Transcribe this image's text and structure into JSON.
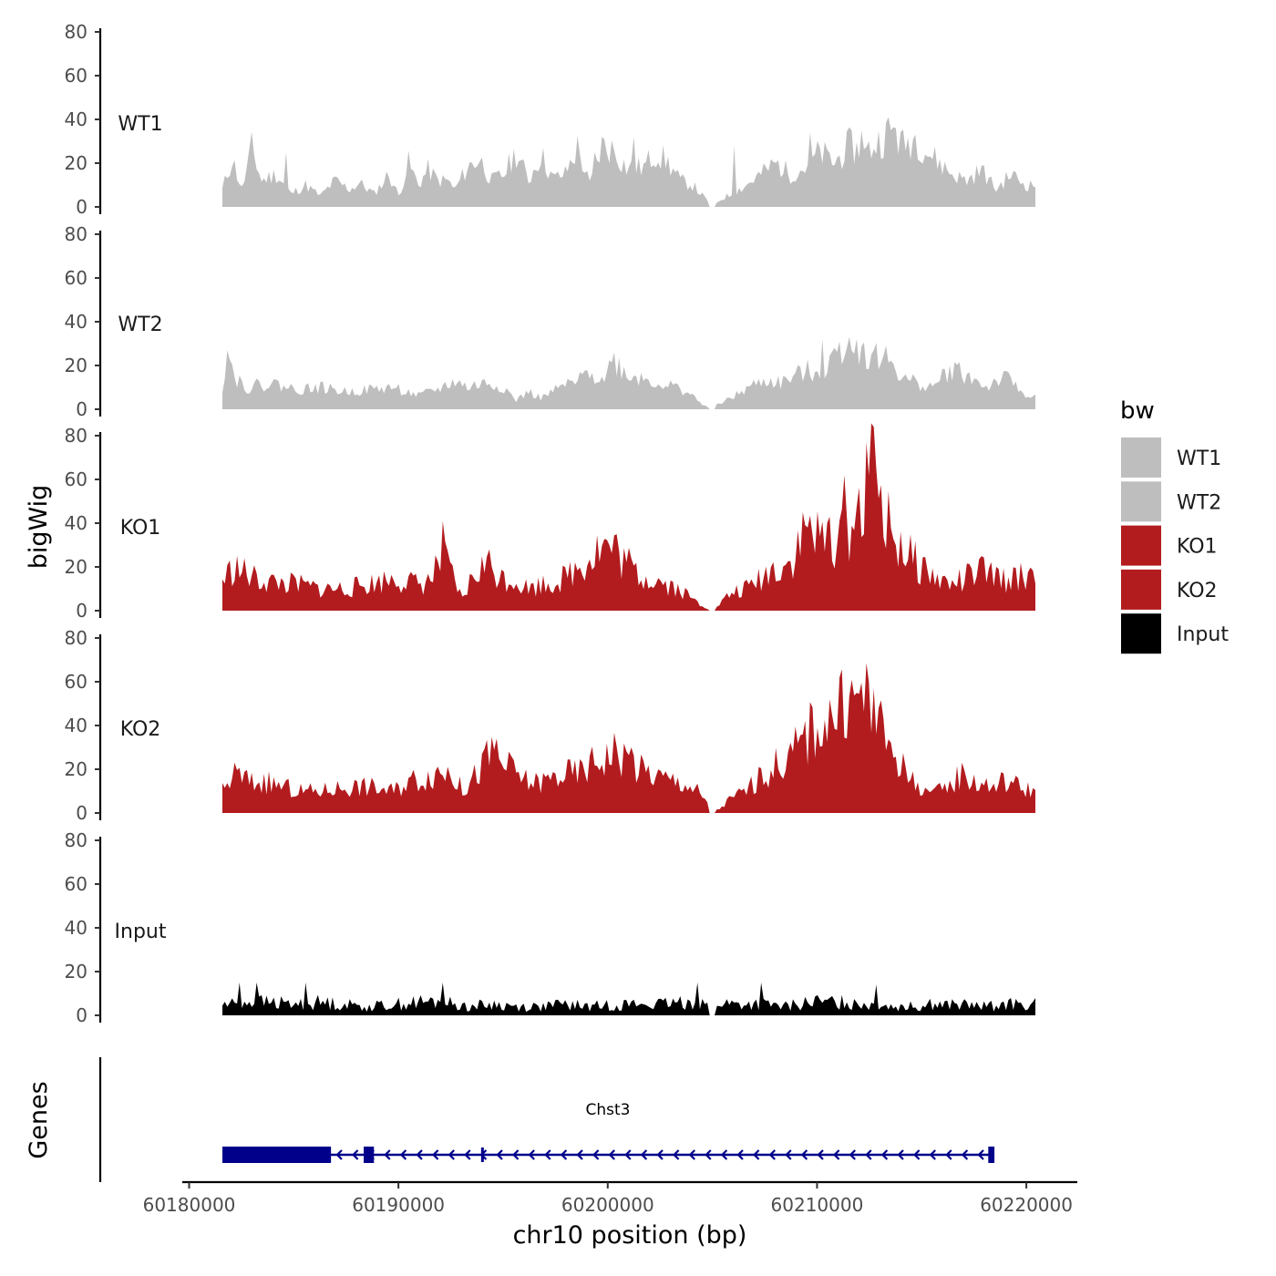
{
  "chart_data": {
    "type": "area",
    "ylabel": "bigWig",
    "xlabel": "chr10 position (bp)",
    "x_range": [
      60181500,
      60221200
    ],
    "x_axis_limits": [
      60180000,
      60222500
    ],
    "x_ticks": [
      60180000,
      60190000,
      60200000,
      60210000,
      60220000
    ],
    "x_tick_labels": [
      "60180000",
      "60190000",
      "60200000",
      "60210000",
      "60220000"
    ],
    "ylim": [
      0,
      80
    ],
    "y_ticks": [
      0,
      20,
      40,
      60,
      80
    ],
    "y_tick_labels": [
      "0",
      "20",
      "40",
      "60",
      "80"
    ],
    "legend": {
      "title": "bw",
      "entries": [
        {
          "label": "WT1",
          "color": "#bebebe"
        },
        {
          "label": "WT2",
          "color": "#bebebe"
        },
        {
          "label": "KO1",
          "color": "#b21c1f"
        },
        {
          "label": "KO2",
          "color": "#b21c1f"
        },
        {
          "label": "Input",
          "color": "#000000"
        }
      ]
    },
    "series": [
      {
        "name": "WT1",
        "color": "#bebebe",
        "profile": [
          [
            0,
            8
          ],
          [
            4,
            22
          ],
          [
            8,
            8
          ],
          [
            12,
            27
          ],
          [
            16,
            12
          ],
          [
            22,
            15
          ],
          [
            28,
            6
          ],
          [
            34,
            10
          ],
          [
            40,
            5
          ],
          [
            46,
            12
          ],
          [
            52,
            8
          ],
          [
            56,
            11
          ],
          [
            62,
            6
          ],
          [
            68,
            15
          ],
          [
            72,
            5
          ],
          [
            76,
            20
          ],
          [
            80,
            10
          ],
          [
            84,
            17
          ],
          [
            88,
            12
          ],
          [
            92,
            12
          ],
          [
            95,
            8
          ],
          [
            100,
            18
          ],
          [
            105,
            22
          ],
          [
            110,
            12
          ],
          [
            115,
            15
          ],
          [
            120,
            25
          ],
          [
            125,
            12
          ],
          [
            130,
            24
          ],
          [
            135,
            13
          ],
          [
            140,
            15
          ],
          [
            145,
            27
          ],
          [
            150,
            10
          ],
          [
            155,
            28
          ],
          [
            160,
            26
          ],
          [
            165,
            18
          ],
          [
            172,
            18
          ],
          [
            177,
            25
          ],
          [
            182,
            20
          ],
          [
            187,
            12
          ],
          [
            192,
            10
          ],
          [
            197,
            4
          ],
          [
            200,
            0
          ],
          [
            203,
            3
          ],
          [
            208,
            6
          ],
          [
            214,
            10
          ],
          [
            220,
            15
          ],
          [
            226,
            20
          ],
          [
            232,
            15
          ],
          [
            238,
            18
          ],
          [
            244,
            25
          ],
          [
            250,
            20
          ],
          [
            256,
            28
          ],
          [
            262,
            24
          ],
          [
            268,
            30
          ],
          [
            273,
            35
          ],
          [
            278,
            28
          ],
          [
            283,
            32
          ],
          [
            288,
            25
          ],
          [
            293,
            20
          ],
          [
            298,
            15
          ],
          [
            304,
            12
          ],
          [
            310,
            17
          ],
          [
            316,
            8
          ],
          [
            322,
            15
          ],
          [
            328,
            10
          ],
          [
            332,
            10
          ]
        ],
        "spikes": [
          [
            26,
            25
          ],
          [
            152,
            25
          ],
          [
            168,
            32
          ],
          [
            209,
            28
          ],
          [
            240,
            34
          ],
          [
            261,
            35
          ],
          [
            275,
            36
          ]
        ],
        "jitter": 0.3,
        "seed": 11
      },
      {
        "name": "WT2",
        "color": "#bebebe",
        "profile": [
          [
            0,
            10
          ],
          [
            2,
            27
          ],
          [
            5,
            15
          ],
          [
            10,
            10
          ],
          [
            20,
            12
          ],
          [
            30,
            9
          ],
          [
            40,
            10
          ],
          [
            50,
            8
          ],
          [
            60,
            9
          ],
          [
            70,
            10
          ],
          [
            80,
            6
          ],
          [
            90,
            10
          ],
          [
            95,
            13
          ],
          [
            100,
            10
          ],
          [
            108,
            12
          ],
          [
            115,
            10
          ],
          [
            120,
            4
          ],
          [
            125,
            8
          ],
          [
            130,
            5
          ],
          [
            135,
            8
          ],
          [
            140,
            11
          ],
          [
            145,
            12
          ],
          [
            150,
            18
          ],
          [
            155,
            14
          ],
          [
            160,
            22
          ],
          [
            165,
            16
          ],
          [
            172,
            14
          ],
          [
            178,
            12
          ],
          [
            185,
            10
          ],
          [
            190,
            8
          ],
          [
            195,
            3
          ],
          [
            200,
            0
          ],
          [
            203,
            3
          ],
          [
            208,
            5
          ],
          [
            215,
            10
          ],
          [
            222,
            13
          ],
          [
            228,
            12
          ],
          [
            234,
            15
          ],
          [
            240,
            18
          ],
          [
            246,
            18
          ],
          [
            252,
            28
          ],
          [
            257,
            32
          ],
          [
            262,
            25
          ],
          [
            268,
            24
          ],
          [
            273,
            22
          ],
          [
            278,
            14
          ],
          [
            284,
            12
          ],
          [
            290,
            10
          ],
          [
            295,
            16
          ],
          [
            300,
            18
          ],
          [
            306,
            14
          ],
          [
            312,
            10
          ],
          [
            318,
            14
          ],
          [
            322,
            13
          ],
          [
            326,
            8
          ],
          [
            330,
            6
          ],
          [
            332,
            6
          ]
        ],
        "spikes": [
          [
            2,
            27
          ],
          [
            160,
            26
          ],
          [
            245,
            32
          ],
          [
            256,
            33
          ]
        ],
        "jitter": 0.3,
        "seed": 22
      },
      {
        "name": "KO1",
        "color": "#b21c1f",
        "profile": [
          [
            0,
            14
          ],
          [
            5,
            20
          ],
          [
            12,
            15
          ],
          [
            20,
            13
          ],
          [
            30,
            12
          ],
          [
            40,
            10
          ],
          [
            50,
            10
          ],
          [
            60,
            12
          ],
          [
            70,
            15
          ],
          [
            80,
            12
          ],
          [
            85,
            14
          ],
          [
            90,
            24
          ],
          [
            94,
            15
          ],
          [
            98,
            5
          ],
          [
            102,
            15
          ],
          [
            108,
            22
          ],
          [
            114,
            15
          ],
          [
            120,
            14
          ],
          [
            125,
            10
          ],
          [
            130,
            12
          ],
          [
            135,
            13
          ],
          [
            140,
            15
          ],
          [
            145,
            20
          ],
          [
            150,
            25
          ],
          [
            155,
            30
          ],
          [
            160,
            28
          ],
          [
            165,
            22
          ],
          [
            170,
            16
          ],
          [
            176,
            15
          ],
          [
            182,
            12
          ],
          [
            186,
            10
          ],
          [
            190,
            7
          ],
          [
            195,
            3
          ],
          [
            200,
            0
          ],
          [
            203,
            3
          ],
          [
            208,
            8
          ],
          [
            214,
            10
          ],
          [
            220,
            15
          ],
          [
            226,
            20
          ],
          [
            232,
            22
          ],
          [
            236,
            32
          ],
          [
            240,
            40
          ],
          [
            244,
            30
          ],
          [
            248,
            35
          ],
          [
            253,
            32
          ],
          [
            260,
            45
          ],
          [
            264,
            68
          ],
          [
            266,
            60
          ],
          [
            268,
            55
          ],
          [
            272,
            38
          ],
          [
            276,
            32
          ],
          [
            280,
            25
          ],
          [
            286,
            20
          ],
          [
            292,
            14
          ],
          [
            298,
            12
          ],
          [
            304,
            15
          ],
          [
            310,
            18
          ],
          [
            316,
            15
          ],
          [
            322,
            14
          ],
          [
            328,
            16
          ],
          [
            332,
            18
          ]
        ],
        "spikes": [
          [
            90,
            41
          ],
          [
            263,
            77
          ],
          [
            267,
            65
          ],
          [
            254,
            62
          ]
        ],
        "jitter": 0.45,
        "seed": 33
      },
      {
        "name": "KO2",
        "color": "#b21c1f",
        "profile": [
          [
            0,
            10
          ],
          [
            5,
            18
          ],
          [
            12,
            14
          ],
          [
            18,
            14
          ],
          [
            25,
            12
          ],
          [
            30,
            10
          ],
          [
            40,
            10
          ],
          [
            50,
            12
          ],
          [
            60,
            12
          ],
          [
            70,
            10
          ],
          [
            76,
            15
          ],
          [
            82,
            16
          ],
          [
            90,
            20
          ],
          [
            94,
            18
          ],
          [
            98,
            10
          ],
          [
            104,
            18
          ],
          [
            110,
            28
          ],
          [
            115,
            22
          ],
          [
            120,
            18
          ],
          [
            125,
            14
          ],
          [
            130,
            14
          ],
          [
            135,
            16
          ],
          [
            140,
            18
          ],
          [
            145,
            18
          ],
          [
            150,
            22
          ],
          [
            155,
            25
          ],
          [
            160,
            28
          ],
          [
            165,
            25
          ],
          [
            170,
            20
          ],
          [
            175,
            18
          ],
          [
            182,
            15
          ],
          [
            188,
            14
          ],
          [
            194,
            10
          ],
          [
            198,
            4
          ],
          [
            200,
            0
          ],
          [
            203,
            2
          ],
          [
            207,
            6
          ],
          [
            213,
            10
          ],
          [
            220,
            16
          ],
          [
            226,
            22
          ],
          [
            232,
            26
          ],
          [
            238,
            35
          ],
          [
            244,
            42
          ],
          [
            250,
            45
          ],
          [
            256,
            50
          ],
          [
            262,
            56
          ],
          [
            266,
            45
          ],
          [
            270,
            35
          ],
          [
            275,
            28
          ],
          [
            280,
            16
          ],
          [
            286,
            12
          ],
          [
            290,
            8
          ],
          [
            296,
            12
          ],
          [
            302,
            18
          ],
          [
            308,
            14
          ],
          [
            314,
            12
          ],
          [
            320,
            15
          ],
          [
            326,
            12
          ],
          [
            332,
            10
          ]
        ],
        "spikes": [
          [
            112,
            34
          ],
          [
            167,
            30
          ],
          [
            248,
            52
          ],
          [
            264,
            60
          ],
          [
            266,
            57
          ]
        ],
        "jitter": 0.4,
        "seed": 44
      },
      {
        "name": "Input",
        "color": "#000000",
        "profile": [
          [
            0,
            5
          ],
          [
            10,
            6
          ],
          [
            20,
            6
          ],
          [
            30,
            5
          ],
          [
            40,
            6
          ],
          [
            50,
            5
          ],
          [
            60,
            4
          ],
          [
            70,
            5
          ],
          [
            80,
            6
          ],
          [
            90,
            6
          ],
          [
            100,
            4
          ],
          [
            110,
            5
          ],
          [
            120,
            4
          ],
          [
            130,
            4
          ],
          [
            140,
            5
          ],
          [
            150,
            4
          ],
          [
            160,
            5
          ],
          [
            170,
            5
          ],
          [
            180,
            5
          ],
          [
            190,
            6
          ],
          [
            200,
            6
          ],
          [
            210,
            5
          ],
          [
            220,
            5
          ],
          [
            230,
            4
          ],
          [
            240,
            6
          ],
          [
            250,
            6
          ],
          [
            260,
            6
          ],
          [
            270,
            5
          ],
          [
            280,
            4
          ],
          [
            290,
            5
          ],
          [
            300,
            5
          ],
          [
            310,
            4
          ],
          [
            320,
            5
          ],
          [
            332,
            5
          ]
        ],
        "spikes": [
          [
            7,
            15
          ],
          [
            14,
            15
          ],
          [
            34,
            15
          ],
          [
            90,
            15
          ],
          [
            194,
            15
          ],
          [
            220,
            15
          ],
          [
            267,
            14
          ]
        ],
        "jitter": 0.6,
        "seed": 55
      }
    ],
    "genes_track": {
      "label": "Genes",
      "gene_name": "Chst3",
      "strand": "-",
      "color": "#00008b",
      "start": 60181500,
      "end": 60219200,
      "exons": [
        {
          "start": 60181500,
          "end": 60186800,
          "type": "thick"
        },
        {
          "start": 60188400,
          "end": 60188900,
          "type": "thick"
        },
        {
          "start": 60194200,
          "end": 60194300,
          "type": "small"
        },
        {
          "start": 60218900,
          "end": 60219200,
          "type": "thick"
        }
      ]
    }
  }
}
